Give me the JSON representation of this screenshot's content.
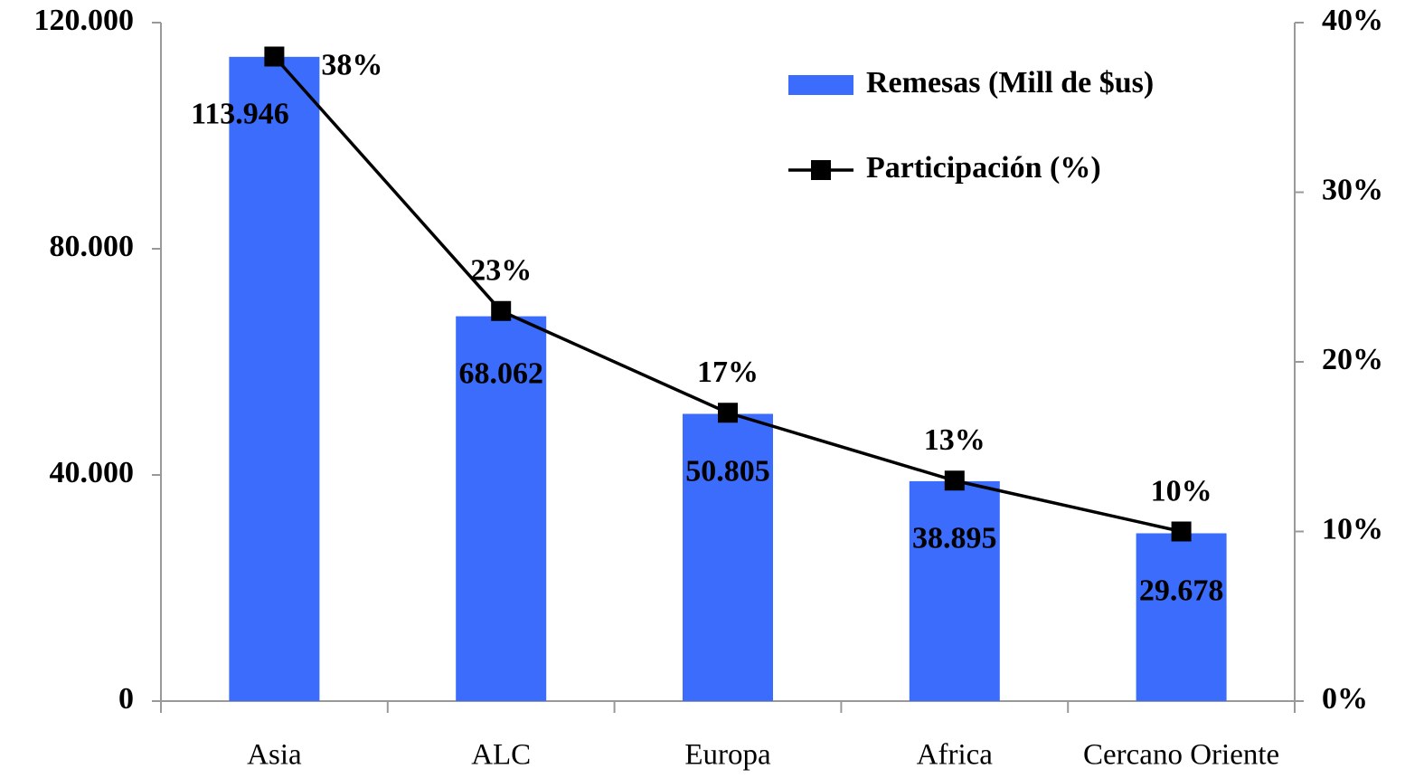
{
  "chart_data": {
    "type": "bar",
    "categories": [
      "Asia",
      "ALC",
      "Europa",
      "Africa",
      "Cercano Oriente"
    ],
    "series": [
      {
        "name": "Remesas (Mill de $us)",
        "type": "bar",
        "color": "#3b6cfb",
        "values": [
          113946,
          68062,
          50805,
          38895,
          29678
        ],
        "value_labels": [
          "113.946",
          "68.062",
          "50.805",
          "38.895",
          "29.678"
        ]
      },
      {
        "name": "Participación (%)",
        "type": "line",
        "axis": "y2",
        "color": "#000000",
        "values": [
          38,
          23,
          17,
          13,
          10
        ],
        "value_labels": [
          "38%",
          "23%",
          "17%",
          "13%",
          "10%"
        ]
      }
    ],
    "ylim": [
      0,
      120000
    ],
    "yticks": [
      0,
      {
        "value": 40000,
        "label": "40.000"
      },
      {
        "value": 80000,
        "label": "80.000"
      },
      {
        "value": 120000,
        "label": "120.000"
      }
    ],
    "y2lim": [
      0,
      40
    ],
    "y2ticks": [
      {
        "value": 0,
        "label": "0%"
      },
      {
        "value": 10,
        "label": "10%"
      },
      {
        "value": 20,
        "label": "20%"
      },
      {
        "value": 30,
        "label": "30%"
      },
      {
        "value": 40,
        "label": "40%"
      }
    ],
    "legend": "upper right"
  }
}
